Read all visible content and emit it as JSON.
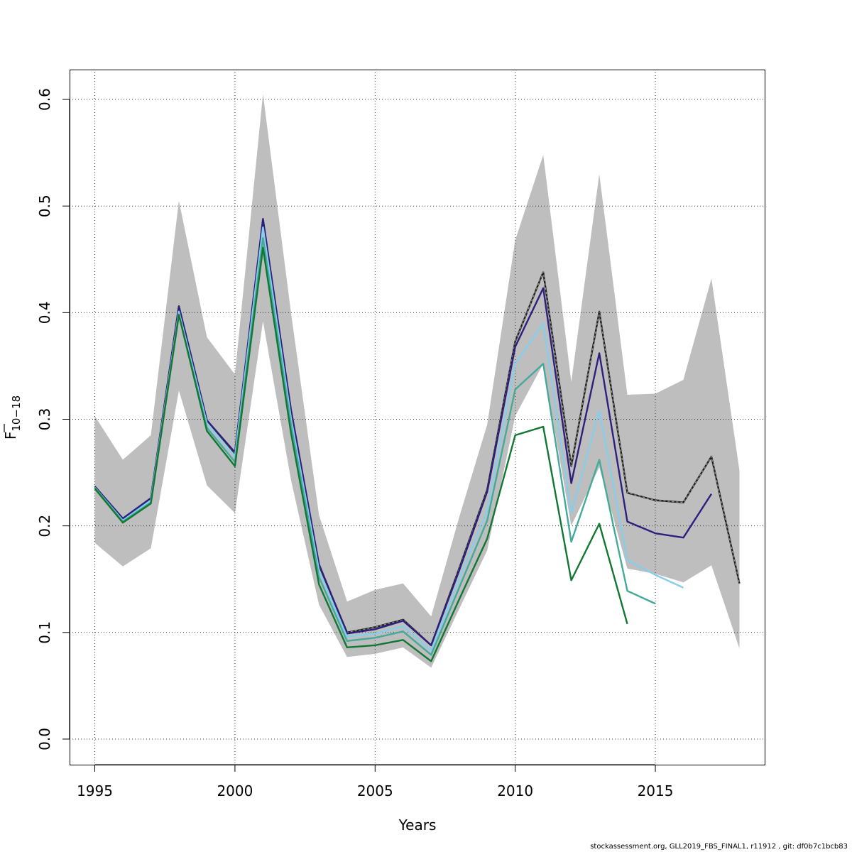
{
  "chart_data": {
    "type": "line",
    "xlabel": "Years",
    "ylabel_main": "F",
    "ylabel_sub": "10−18",
    "xlim": [
      1994.1,
      2018.9
    ],
    "ylim": [
      -0.024,
      0.628
    ],
    "x_ticks": [
      1995,
      2000,
      2005,
      2010,
      2015
    ],
    "y_ticks": [
      0.0,
      0.1,
      0.2,
      0.3,
      0.4,
      0.5,
      0.6
    ],
    "y_tick_labels": [
      "0.0",
      "0.1",
      "0.2",
      "0.3",
      "0.4",
      "0.5",
      "0.6"
    ],
    "grid": true,
    "band": {
      "color": "#bebebe",
      "x": [
        1995,
        1996,
        1997,
        1998,
        1999,
        2000,
        2001,
        2002,
        2003,
        2004,
        2005,
        2006,
        2007,
        2008,
        2009,
        2010,
        2011,
        2012,
        2013,
        2014,
        2015,
        2016,
        2017,
        2018
      ],
      "lower": [
        0.184,
        0.162,
        0.179,
        0.327,
        0.238,
        0.212,
        0.392,
        0.243,
        0.126,
        0.077,
        0.08,
        0.086,
        0.067,
        0.122,
        0.177,
        0.303,
        0.352,
        0.2,
        0.255,
        0.16,
        0.155,
        0.147,
        0.163,
        0.085
      ],
      "upper": [
        0.303,
        0.262,
        0.285,
        0.505,
        0.377,
        0.342,
        0.605,
        0.4,
        0.21,
        0.129,
        0.14,
        0.146,
        0.115,
        0.208,
        0.295,
        0.468,
        0.548,
        0.335,
        0.53,
        0.323,
        0.324,
        0.337,
        0.432,
        0.252
      ]
    },
    "series": [
      {
        "color": "#1f1f1f",
        "dashed": true,
        "x": [
          1995,
          1996,
          1997,
          1998,
          1999,
          2000,
          2001,
          2002,
          2003,
          2004,
          2005,
          2006,
          2007,
          2008,
          2009,
          2010,
          2011,
          2012,
          2013,
          2014,
          2015,
          2016,
          2017,
          2018
        ],
        "y": [
          0.237,
          0.206,
          0.226,
          0.406,
          0.299,
          0.268,
          0.487,
          0.308,
          0.163,
          0.1,
          0.105,
          0.112,
          0.088,
          0.16,
          0.234,
          0.373,
          0.438,
          0.256,
          0.401,
          0.231,
          0.224,
          0.222,
          0.265,
          0.146
        ]
      },
      {
        "color": "#2e1f7e",
        "dashed": false,
        "x": [
          1995,
          1996,
          1997,
          1998,
          1999,
          2000,
          2001,
          2002,
          2003,
          2004,
          2005,
          2006,
          2007,
          2008,
          2009,
          2010,
          2011,
          2012,
          2013,
          2014,
          2015,
          2016,
          2017
        ],
        "y": [
          0.237,
          0.207,
          0.226,
          0.406,
          0.299,
          0.269,
          0.488,
          0.309,
          0.164,
          0.099,
          0.103,
          0.111,
          0.088,
          0.158,
          0.232,
          0.368,
          0.423,
          0.24,
          0.362,
          0.204,
          0.193,
          0.189,
          0.23
        ]
      },
      {
        "color": "#87ceeb",
        "dashed": false,
        "x": [
          1995,
          1996,
          1997,
          1998,
          1999,
          2000,
          2001,
          2002,
          2003,
          2004,
          2005,
          2006,
          2007,
          2008,
          2009,
          2010,
          2011,
          2012,
          2013,
          2014,
          2015,
          2016
        ],
        "y": [
          0.236,
          0.205,
          0.224,
          0.401,
          0.296,
          0.265,
          0.48,
          0.301,
          0.158,
          0.096,
          0.099,
          0.106,
          0.083,
          0.15,
          0.215,
          0.352,
          0.39,
          0.212,
          0.308,
          0.168,
          0.154,
          0.142
        ]
      },
      {
        "color": "#44aa99",
        "dashed": false,
        "x": [
          1995,
          1996,
          1997,
          1998,
          1999,
          2000,
          2001,
          2002,
          2003,
          2004,
          2005,
          2006,
          2007,
          2008,
          2009,
          2010,
          2011,
          2012,
          2013,
          2014,
          2015
        ],
        "y": [
          0.236,
          0.204,
          0.222,
          0.398,
          0.292,
          0.26,
          0.47,
          0.295,
          0.152,
          0.092,
          0.095,
          0.101,
          0.079,
          0.142,
          0.205,
          0.328,
          0.352,
          0.185,
          0.262,
          0.139,
          0.127
        ]
      },
      {
        "color": "#117733",
        "dashed": false,
        "x": [
          1995,
          1996,
          1997,
          1998,
          1999,
          2000,
          2001,
          2002,
          2003,
          2004,
          2005,
          2006,
          2007,
          2008,
          2009,
          2010,
          2011,
          2012,
          2013,
          2014
        ],
        "y": [
          0.235,
          0.203,
          0.221,
          0.398,
          0.289,
          0.256,
          0.461,
          0.287,
          0.145,
          0.086,
          0.088,
          0.093,
          0.073,
          0.131,
          0.188,
          0.285,
          0.293,
          0.149,
          0.202,
          0.108
        ]
      }
    ]
  },
  "footer_text": "stockassessment.org, GLL2019_FBS_FINAL1, r11912 , git: df0b7c1bcb83"
}
